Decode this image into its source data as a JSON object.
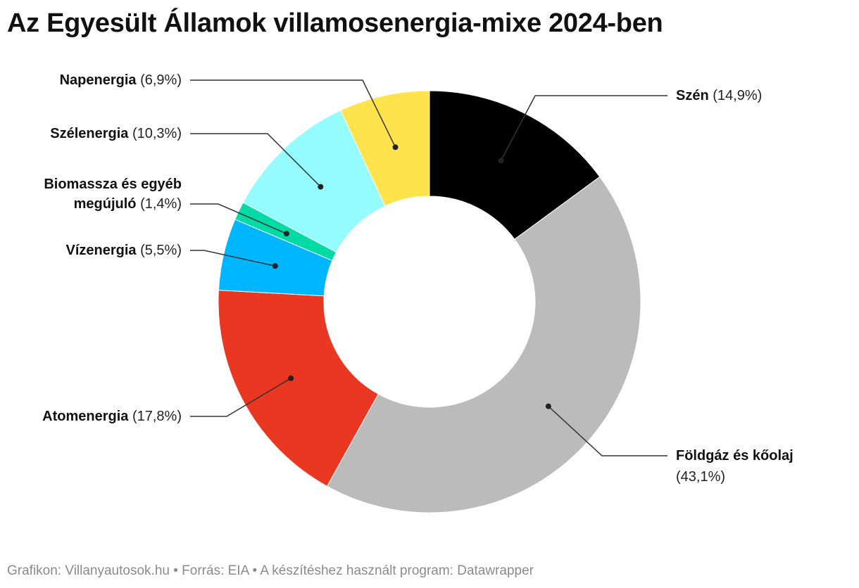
{
  "title": "Az Egyesült Államok villamosenergia-mixe 2024-ben",
  "footer": {
    "grafikon": "Grafikon: Villanyautosok.hu",
    "forras": "Forrás: EIA",
    "program": "A készítéshez használt program: Datawrapper",
    "separator": "•"
  },
  "chart_data": {
    "type": "pie",
    "style": "donut",
    "unit": "%",
    "slices": [
      {
        "name": "Szén",
        "value_label": "(14,9%)",
        "value": 14.9,
        "color": "#000000"
      },
      {
        "name": "Földgáz és kőolaj",
        "value_label": "(43,1%)",
        "value": 43.1,
        "color": "#bbbbbb"
      },
      {
        "name": "Atomenergia",
        "value_label": "(17,8%)",
        "value": 17.8,
        "color": "#ea3722"
      },
      {
        "name": "Vízenergia",
        "value_label": "(5,5%)",
        "value": 5.5,
        "color": "#00b6ff"
      },
      {
        "name": "Biomassza és egyéb megújuló",
        "name_lines": [
          "Biomassza és egyéb",
          "megújuló"
        ],
        "value_label": "(1,4%)",
        "value": 1.4,
        "color": "#00dba5"
      },
      {
        "name": "Szélenergia",
        "value_label": "(10,3%)",
        "value": 10.3,
        "color": "#94fcff"
      },
      {
        "name": "Napenergia",
        "value_label": "(6,9%)",
        "value": 6.9,
        "color": "#ffe34d"
      }
    ]
  }
}
